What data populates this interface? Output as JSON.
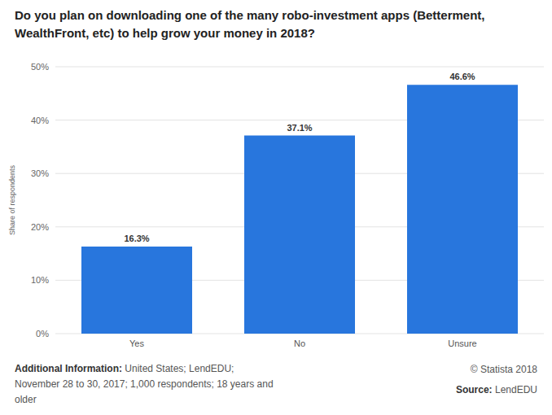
{
  "chart_data": {
    "type": "bar",
    "title": "Do you plan on downloading one of the many robo-investment apps (Betterment, WealthFront, etc) to help grow your money in 2018?",
    "y_label": "Share of respondents",
    "categories": [
      "Yes",
      "No",
      "Unsure"
    ],
    "values": [
      16.3,
      37.1,
      46.6
    ],
    "value_labels": [
      "16.3%",
      "37.1%",
      "46.6%"
    ],
    "data_labels": true,
    "color": "#2876dd",
    "ylim": [
      0,
      50
    ],
    "yticks": [
      {
        "value": 0,
        "label": "0%"
      },
      {
        "value": 10,
        "label": "10%"
      },
      {
        "value": 20,
        "label": "20%"
      },
      {
        "value": 30,
        "label": "30%"
      },
      {
        "value": 40,
        "label": "40%"
      },
      {
        "value": 50,
        "label": "50%"
      }
    ],
    "grid": true,
    "annotations": [
      "Additional Information: United States; LendEDU; November 28 to 30, 2017; 1,000 respondents; 18 years and older",
      "© Statista 2018",
      "Source: LendEDU"
    ]
  }
}
